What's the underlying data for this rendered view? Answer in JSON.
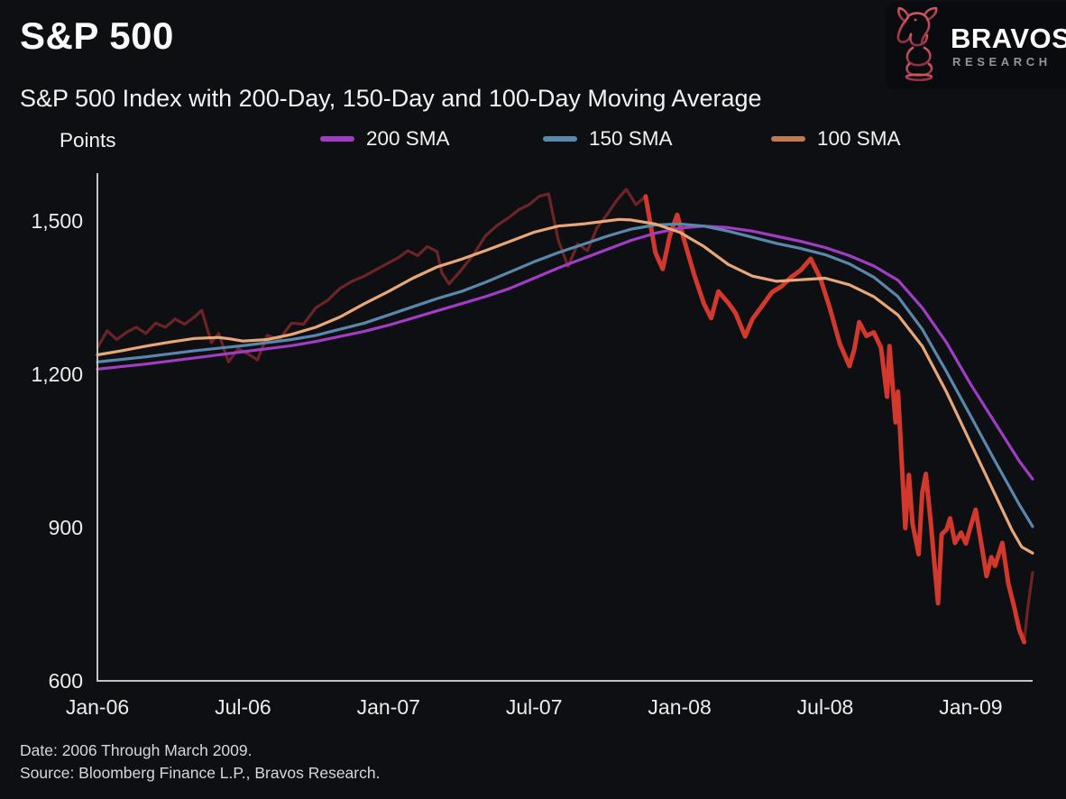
{
  "header": {
    "title": "S&P 500",
    "subtitle": "S&P 500 Index with 200-Day, 150-Day and 100-Day Moving Average"
  },
  "logo": {
    "brand": "BRAVOS",
    "sub_brand": "RESEARCH",
    "icon": "bull-logo-icon",
    "accent_top": "#cf5a64",
    "accent_bottom": "#8e3040"
  },
  "legend": {
    "items": [
      {
        "label": "200 SMA",
        "color": "#a13cc4"
      },
      {
        "label": "150 SMA",
        "color": "#5a87ac"
      },
      {
        "label": "100 SMA",
        "color": "#c07a4e"
      }
    ]
  },
  "footer": {
    "date_note": "Date: 2006 Through March 2009.",
    "source_note": "Source: Bloomberg Finance L.P., Bravos Research."
  },
  "chart_data": {
    "type": "line",
    "title": "S&P 500",
    "subtitle": "S&P 500 Index with 200-Day, 150-Day and 100-Day Moving Average",
    "ylabel": "Points",
    "x_unit": "months since Jan-2006",
    "grid": false,
    "legend_position": "top",
    "ylim": [
      600,
      1590
    ],
    "xlim_months": [
      0,
      38.55
    ],
    "y_ticks": [
      {
        "value": 1500,
        "label": "1,500"
      },
      {
        "value": 1200,
        "label": "1,200"
      },
      {
        "value": 900,
        "label": "900"
      },
      {
        "value": 600,
        "label": "600"
      }
    ],
    "x_ticks": [
      {
        "month": 0,
        "label": "Jan-06"
      },
      {
        "month": 6,
        "label": "Jul-06"
      },
      {
        "month": 12,
        "label": "Jan-07"
      },
      {
        "month": 18,
        "label": "Jul-07"
      },
      {
        "month": 24,
        "label": "Jan-08"
      },
      {
        "month": 30,
        "label": "Jul-08"
      },
      {
        "month": 36,
        "label": "Jan-09"
      }
    ],
    "axis_color": "#c0c2c6",
    "series": [
      {
        "name": "S&P 500",
        "role": "price",
        "color": "#d2392c",
        "width": 5,
        "muted_color": "#6c2427",
        "muted_width": 3.2,
        "bright_start_month": 22.6,
        "bright_end_month": 38.2,
        "points": [
          [
            0,
            1252
          ],
          [
            0.4,
            1285
          ],
          [
            0.8,
            1268
          ],
          [
            1.2,
            1282
          ],
          [
            1.6,
            1292
          ],
          [
            2.0,
            1280
          ],
          [
            2.4,
            1300
          ],
          [
            2.8,
            1292
          ],
          [
            3.2,
            1308
          ],
          [
            3.6,
            1298
          ],
          [
            4.0,
            1312
          ],
          [
            4.3,
            1325
          ],
          [
            4.7,
            1262
          ],
          [
            5.0,
            1280
          ],
          [
            5.4,
            1224
          ],
          [
            5.8,
            1250
          ],
          [
            6.2,
            1240
          ],
          [
            6.6,
            1228
          ],
          [
            7.0,
            1276
          ],
          [
            7.5,
            1268
          ],
          [
            8.0,
            1300
          ],
          [
            8.5,
            1298
          ],
          [
            9.0,
            1330
          ],
          [
            9.5,
            1345
          ],
          [
            10.0,
            1368
          ],
          [
            10.5,
            1382
          ],
          [
            11.0,
            1392
          ],
          [
            11.5,
            1405
          ],
          [
            12.0,
            1418
          ],
          [
            12.4,
            1428
          ],
          [
            12.8,
            1442
          ],
          [
            13.2,
            1432
          ],
          [
            13.6,
            1450
          ],
          [
            14.0,
            1440
          ],
          [
            14.2,
            1398
          ],
          [
            14.5,
            1377
          ],
          [
            15.0,
            1404
          ],
          [
            15.5,
            1434
          ],
          [
            16.0,
            1471
          ],
          [
            16.5,
            1492
          ],
          [
            17.0,
            1508
          ],
          [
            17.4,
            1523
          ],
          [
            17.8,
            1532
          ],
          [
            18.2,
            1548
          ],
          [
            18.6,
            1553
          ],
          [
            19.0,
            1462
          ],
          [
            19.4,
            1411
          ],
          [
            19.8,
            1455
          ],
          [
            20.2,
            1442
          ],
          [
            20.6,
            1487
          ],
          [
            21.0,
            1512
          ],
          [
            21.4,
            1540
          ],
          [
            21.8,
            1562
          ],
          [
            22.2,
            1532
          ],
          [
            22.6,
            1548
          ],
          [
            23.0,
            1438
          ],
          [
            23.3,
            1406
          ],
          [
            23.6,
            1472
          ],
          [
            23.9,
            1512
          ],
          [
            24.2,
            1460
          ],
          [
            24.6,
            1395
          ],
          [
            25.0,
            1338
          ],
          [
            25.3,
            1310
          ],
          [
            25.6,
            1362
          ],
          [
            26.0,
            1340
          ],
          [
            26.3,
            1320
          ],
          [
            26.7,
            1274
          ],
          [
            27.0,
            1308
          ],
          [
            27.4,
            1334
          ],
          [
            27.8,
            1360
          ],
          [
            28.2,
            1372
          ],
          [
            28.6,
            1390
          ],
          [
            29.0,
            1404
          ],
          [
            29.4,
            1426
          ],
          [
            29.8,
            1388
          ],
          [
            30.2,
            1328
          ],
          [
            30.6,
            1260
          ],
          [
            31.0,
            1216
          ],
          [
            31.2,
            1249
          ],
          [
            31.4,
            1302
          ],
          [
            31.7,
            1275
          ],
          [
            32.0,
            1282
          ],
          [
            32.3,
            1252
          ],
          [
            32.55,
            1156
          ],
          [
            32.65,
            1255
          ],
          [
            32.9,
            1106
          ],
          [
            33.0,
            1166
          ],
          [
            33.3,
            899
          ],
          [
            33.45,
            1003
          ],
          [
            33.6,
            908
          ],
          [
            33.85,
            848
          ],
          [
            34.0,
            968
          ],
          [
            34.15,
            1005
          ],
          [
            34.35,
            911
          ],
          [
            34.65,
            752
          ],
          [
            34.8,
            887
          ],
          [
            35.0,
            896
          ],
          [
            35.15,
            918
          ],
          [
            35.35,
            870
          ],
          [
            35.6,
            890
          ],
          [
            35.8,
            869
          ],
          [
            36.0,
            903
          ],
          [
            36.2,
            935
          ],
          [
            36.5,
            850
          ],
          [
            36.65,
            805
          ],
          [
            36.85,
            842
          ],
          [
            37.0,
            825
          ],
          [
            37.3,
            870
          ],
          [
            37.55,
            790
          ],
          [
            37.8,
            743
          ],
          [
            38.0,
            700
          ],
          [
            38.2,
            676
          ],
          [
            38.35,
            742
          ],
          [
            38.55,
            812
          ]
        ]
      },
      {
        "name": "200 SMA",
        "role": "sma",
        "color": "#a13cc4",
        "width": 3.2,
        "points": [
          [
            0,
            1210
          ],
          [
            2,
            1220
          ],
          [
            4,
            1232
          ],
          [
            6,
            1244
          ],
          [
            8,
            1256
          ],
          [
            9,
            1264
          ],
          [
            10,
            1274
          ],
          [
            11,
            1284
          ],
          [
            12,
            1296
          ],
          [
            13,
            1310
          ],
          [
            14,
            1324
          ],
          [
            15,
            1338
          ],
          [
            16,
            1352
          ],
          [
            17,
            1368
          ],
          [
            18,
            1388
          ],
          [
            19,
            1408
          ],
          [
            20,
            1426
          ],
          [
            21,
            1444
          ],
          [
            22,
            1462
          ],
          [
            23,
            1476
          ],
          [
            24,
            1486
          ],
          [
            25,
            1490
          ],
          [
            26,
            1487
          ],
          [
            27,
            1480
          ],
          [
            28,
            1470
          ],
          [
            29,
            1460
          ],
          [
            30,
            1448
          ],
          [
            31,
            1432
          ],
          [
            32,
            1412
          ],
          [
            33,
            1384
          ],
          [
            34,
            1330
          ],
          [
            35,
            1262
          ],
          [
            36,
            1180
          ],
          [
            37,
            1105
          ],
          [
            38,
            1030
          ],
          [
            38.55,
            995
          ]
        ]
      },
      {
        "name": "150 SMA",
        "role": "sma",
        "color": "#5a87ac",
        "width": 3.2,
        "points": [
          [
            0,
            1224
          ],
          [
            2,
            1234
          ],
          [
            4,
            1246
          ],
          [
            6,
            1256
          ],
          [
            8,
            1268
          ],
          [
            9,
            1276
          ],
          [
            10,
            1288
          ],
          [
            11,
            1300
          ],
          [
            12,
            1316
          ],
          [
            13,
            1332
          ],
          [
            14,
            1348
          ],
          [
            15,
            1362
          ],
          [
            16,
            1380
          ],
          [
            17,
            1400
          ],
          [
            18,
            1420
          ],
          [
            19,
            1438
          ],
          [
            20,
            1454
          ],
          [
            21,
            1470
          ],
          [
            22,
            1484
          ],
          [
            23,
            1492
          ],
          [
            24,
            1494
          ],
          [
            25,
            1490
          ],
          [
            26,
            1480
          ],
          [
            27,
            1468
          ],
          [
            28,
            1456
          ],
          [
            29,
            1446
          ],
          [
            30,
            1434
          ],
          [
            31,
            1416
          ],
          [
            32,
            1390
          ],
          [
            33,
            1352
          ],
          [
            34,
            1288
          ],
          [
            35,
            1205
          ],
          [
            36,
            1118
          ],
          [
            37,
            1030
          ],
          [
            38,
            945
          ],
          [
            38.55,
            902
          ]
        ]
      },
      {
        "name": "100 SMA",
        "role": "sma",
        "color": "#e8a778",
        "width": 3.2,
        "points": [
          [
            0,
            1238
          ],
          [
            1,
            1246
          ],
          [
            2,
            1255
          ],
          [
            3,
            1263
          ],
          [
            4,
            1270
          ],
          [
            5,
            1272
          ],
          [
            5.5,
            1269
          ],
          [
            6,
            1265
          ],
          [
            7,
            1268
          ],
          [
            8,
            1278
          ],
          [
            9,
            1292
          ],
          [
            10,
            1312
          ],
          [
            11,
            1338
          ],
          [
            12,
            1362
          ],
          [
            13,
            1388
          ],
          [
            14,
            1410
          ],
          [
            15,
            1425
          ],
          [
            16,
            1442
          ],
          [
            17,
            1460
          ],
          [
            18,
            1478
          ],
          [
            19,
            1490
          ],
          [
            20,
            1494
          ],
          [
            21,
            1500
          ],
          [
            21.5,
            1503
          ],
          [
            22,
            1502
          ],
          [
            23,
            1494
          ],
          [
            24,
            1478
          ],
          [
            25,
            1450
          ],
          [
            26,
            1415
          ],
          [
            27,
            1392
          ],
          [
            28,
            1382
          ],
          [
            29,
            1385
          ],
          [
            30,
            1388
          ],
          [
            31,
            1375
          ],
          [
            32,
            1352
          ],
          [
            33,
            1316
          ],
          [
            34,
            1255
          ],
          [
            35,
            1165
          ],
          [
            36,
            1065
          ],
          [
            37,
            965
          ],
          [
            37.7,
            895
          ],
          [
            38.1,
            862
          ],
          [
            38.55,
            850
          ]
        ]
      }
    ]
  }
}
